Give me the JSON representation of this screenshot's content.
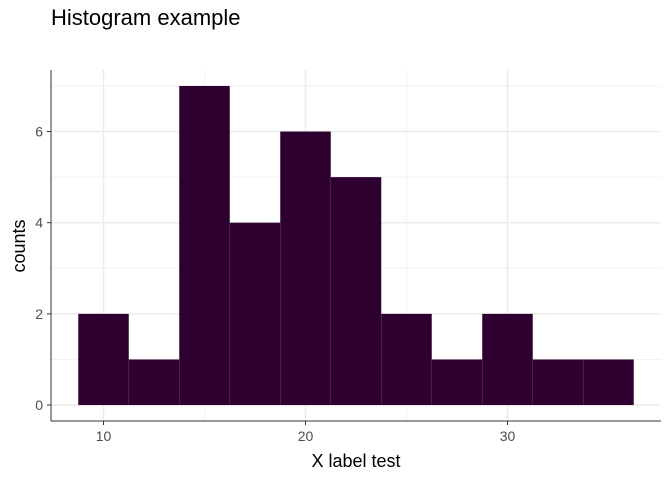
{
  "chart_data": {
    "type": "bar",
    "subtype": "histogram",
    "title": "Histogram example",
    "xlabel": "X label test",
    "ylabel": "counts",
    "bins": [
      {
        "x0": 8.75,
        "x1": 11.25,
        "count": 2
      },
      {
        "x0": 11.25,
        "x1": 13.75,
        "count": 1
      },
      {
        "x0": 13.75,
        "x1": 16.25,
        "count": 7
      },
      {
        "x0": 16.25,
        "x1": 18.75,
        "count": 4
      },
      {
        "x0": 18.75,
        "x1": 21.25,
        "count": 6
      },
      {
        "x0": 21.25,
        "x1": 23.75,
        "count": 5
      },
      {
        "x0": 23.75,
        "x1": 26.25,
        "count": 2
      },
      {
        "x0": 26.25,
        "x1": 28.75,
        "count": 1
      },
      {
        "x0": 28.75,
        "x1": 31.25,
        "count": 2
      },
      {
        "x0": 31.25,
        "x1": 33.75,
        "count": 1
      },
      {
        "x0": 33.75,
        "x1": 36.25,
        "count": 1
      }
    ],
    "xticks": [
      10,
      20,
      30
    ],
    "yticks": [
      0,
      2,
      4,
      6
    ],
    "xlim": [
      7.4,
      37.6
    ],
    "ylim": [
      -0.35,
      7.35
    ],
    "bar_color": "#2d0030",
    "grid": true
  }
}
